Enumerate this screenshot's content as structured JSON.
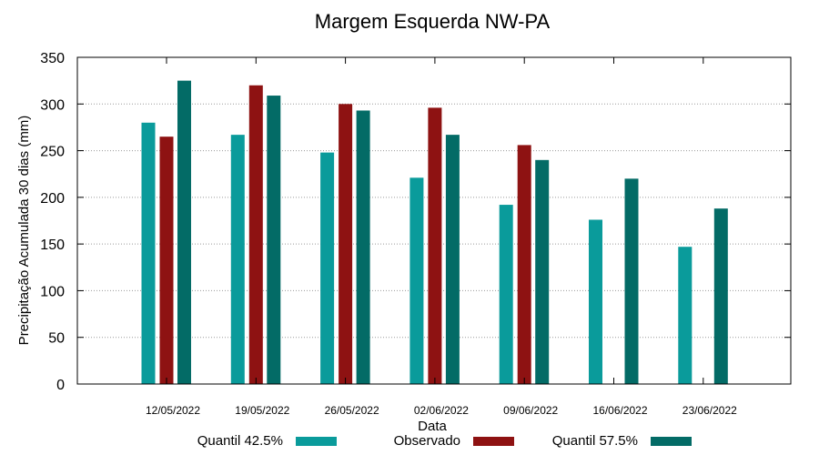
{
  "chart_data": {
    "type": "bar",
    "title": "Margem Esquerda NW-PA",
    "xlabel": "Data",
    "ylabel": "Precipitação Acumulada 30 dias (mm)",
    "ylim": [
      0,
      350
    ],
    "yticks": [
      0,
      50,
      100,
      150,
      200,
      250,
      300,
      350
    ],
    "grid": true,
    "legend_position": "bottom",
    "categories": [
      "12/05/2022",
      "19/05/2022",
      "26/05/2022",
      "02/06/2022",
      "09/06/2022",
      "16/06/2022",
      "23/06/2022"
    ],
    "series": [
      {
        "name": "Quantil 42.5%",
        "color": "#0a9b9b",
        "values": [
          280,
          267,
          248,
          221,
          192,
          176,
          147
        ]
      },
      {
        "name": "Observado",
        "color": "#8e1212",
        "values": [
          265,
          320,
          300,
          296,
          256,
          null,
          null
        ]
      },
      {
        "name": "Quantil 57.5%",
        "color": "#036b66",
        "values": [
          325,
          309,
          293,
          267,
          240,
          220,
          188
        ]
      }
    ]
  }
}
